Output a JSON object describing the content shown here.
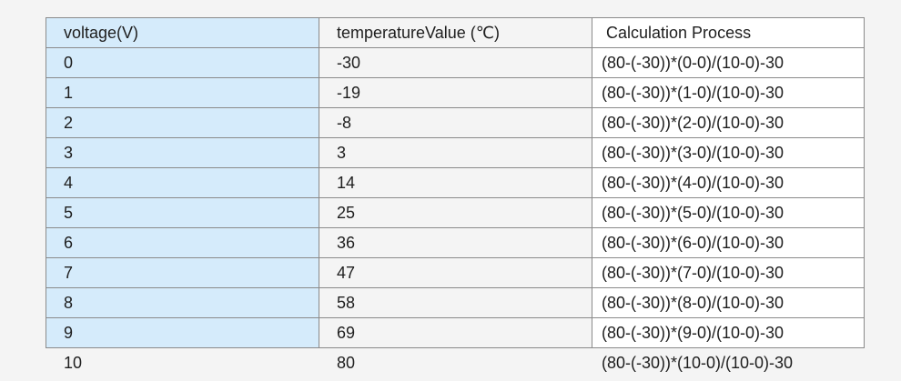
{
  "table": {
    "header": [
      "voltage(V)",
      "temperatureValue (℃)",
      "Calculation Process"
    ],
    "rows": [
      [
        "0",
        "-30",
        "(80-(-30))*(0-0)/(10-0)-30"
      ],
      [
        "1",
        "-19",
        "(80-(-30))*(1-0)/(10-0)-30"
      ],
      [
        "2",
        "-8",
        "(80-(-30))*(2-0)/(10-0)-30"
      ],
      [
        "3",
        "3",
        "(80-(-30))*(3-0)/(10-0)-30"
      ],
      [
        "4",
        "14",
        "(80-(-30))*(4-0)/(10-0)-30"
      ],
      [
        "5",
        "25",
        "(80-(-30))*(5-0)/(10-0)-30"
      ],
      [
        "6",
        "36",
        "(80-(-30))*(6-0)/(10-0)-30"
      ],
      [
        "7",
        "47",
        "(80-(-30))*(7-0)/(10-0)-30"
      ],
      [
        "8",
        "58",
        "(80-(-30))*(8-0)/(10-0)-30"
      ],
      [
        "9",
        "69",
        "(80-(-30))*(9-0)/(10-0)-30"
      ],
      [
        "10",
        "80",
        "(80-(-30))*(10-0)/(10-0)-30"
      ]
    ]
  }
}
